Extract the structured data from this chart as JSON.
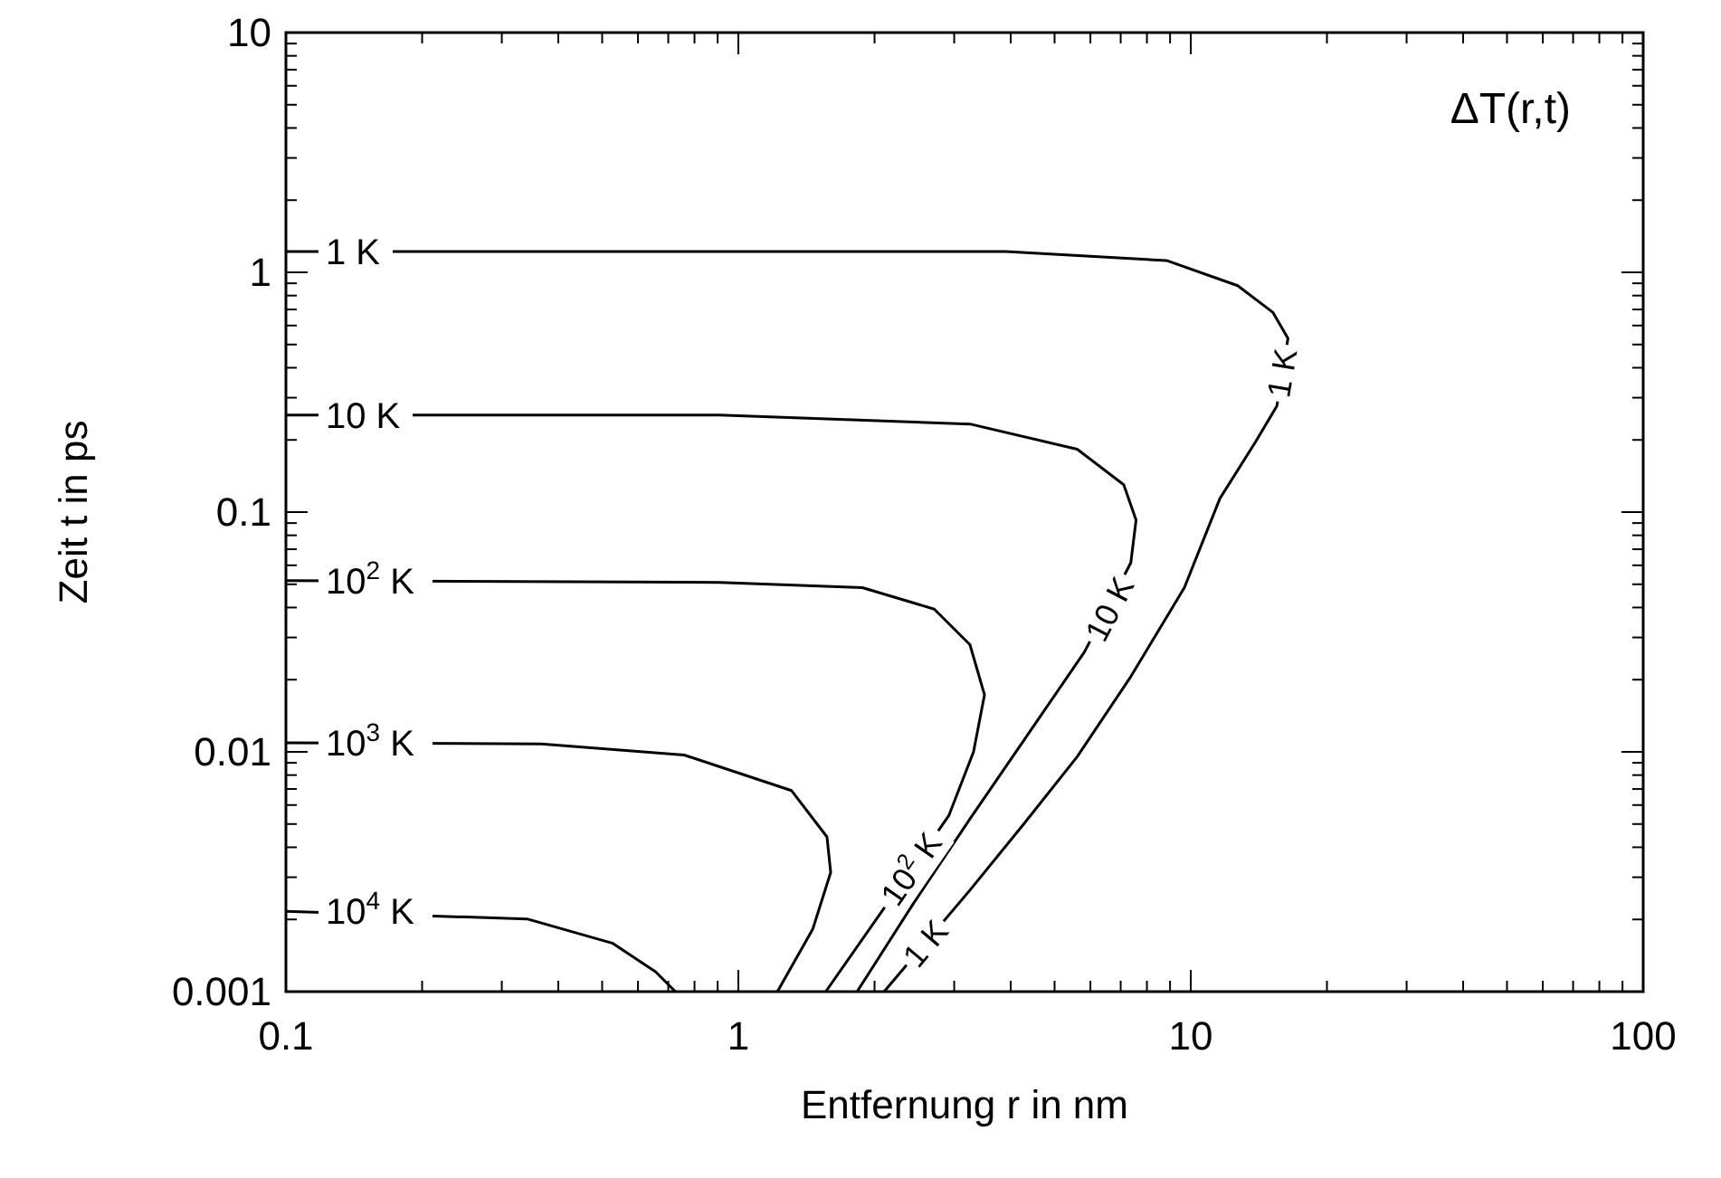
{
  "chart_data": {
    "type": "line",
    "title": "ΔT(r,t)",
    "xlabel": "Entfernung r in nm",
    "ylabel": "Zeit t in ps",
    "log": "xy",
    "xlim": [
      0.1,
      100
    ],
    "ylim": [
      0.001,
      10
    ],
    "xticks": [
      0.1,
      {
        "value": 0.2,
        "label": null
      },
      {
        "value": 0.3,
        "label": null
      },
      {
        "value": 0.4,
        "label": null
      },
      {
        "value": 0.5,
        "label": null
      },
      {
        "value": 0.6,
        "label": null
      },
      {
        "value": 0.7,
        "label": null
      },
      {
        "value": 0.8,
        "label": null
      },
      {
        "value": 0.9,
        "label": null
      },
      1,
      {
        "value": 2,
        "label": null
      },
      {
        "value": 3,
        "label": null
      },
      {
        "value": 4,
        "label": null
      },
      {
        "value": 5,
        "label": null
      },
      {
        "value": 6,
        "label": null
      },
      {
        "value": 7,
        "label": null
      },
      {
        "value": 8,
        "label": null
      },
      {
        "value": 9,
        "label": null
      },
      10,
      {
        "value": 20,
        "label": null
      },
      {
        "value": 30,
        "label": null
      },
      {
        "value": 40,
        "label": null
      },
      {
        "value": 50,
        "label": null
      },
      {
        "value": 60,
        "label": null
      },
      {
        "value": 70,
        "label": null
      },
      {
        "value": 80,
        "label": null
      },
      {
        "value": 90,
        "label": null
      },
      100
    ],
    "yticks": [
      0.001,
      {
        "value": 0.002,
        "label": null
      },
      {
        "value": 0.003,
        "label": null
      },
      {
        "value": 0.004,
        "label": null
      },
      {
        "value": 0.005,
        "label": null
      },
      {
        "value": 0.006,
        "label": null
      },
      {
        "value": 0.007,
        "label": null
      },
      {
        "value": 0.008,
        "label": null
      },
      {
        "value": 0.009,
        "label": null
      },
      0.01,
      {
        "value": 0.02,
        "label": null
      },
      {
        "value": 0.03,
        "label": null
      },
      {
        "value": 0.04,
        "label": null
      },
      {
        "value": 0.05,
        "label": null
      },
      {
        "value": 0.06,
        "label": null
      },
      {
        "value": 0.07,
        "label": null
      },
      {
        "value": 0.08,
        "label": null
      },
      {
        "value": 0.09,
        "label": null
      },
      0.1,
      {
        "value": 0.2,
        "label": null
      },
      {
        "value": 0.3,
        "label": null
      },
      {
        "value": 0.4,
        "label": null
      },
      {
        "value": 0.5,
        "label": null
      },
      {
        "value": 0.6,
        "label": null
      },
      {
        "value": 0.7,
        "label": null
      },
      {
        "value": 0.8,
        "label": null
      },
      {
        "value": 0.9,
        "label": null
      },
      1,
      {
        "value": 2,
        "label": null
      },
      {
        "value": 3,
        "label": null
      },
      {
        "value": 4,
        "label": null
      },
      {
        "value": 5,
        "label": null
      },
      {
        "value": 6,
        "label": null
      },
      {
        "value": 7,
        "label": null
      },
      {
        "value": 8,
        "label": null
      },
      {
        "value": 9,
        "label": null
      },
      10
    ],
    "series": [
      {
        "name": "1 K",
        "color": "#000000",
        "x": [
          0.1,
          0.91,
          3.9,
          8.84,
          12.7,
          15.2,
          16.4,
          15.5,
          13.9,
          11.6,
          9.68,
          7.37,
          5.61,
          4.27,
          3.25,
          2.1
        ],
        "values": [
          1.22,
          1.22,
          1.22,
          1.12,
          0.88,
          0.68,
          0.53,
          0.277,
          0.196,
          0.114,
          0.0484,
          0.0206,
          0.00954,
          0.00499,
          0.00265,
          0.001
        ]
      },
      {
        "name": "10 K",
        "color": "#000000",
        "x": [
          0.1,
          0.91,
          3.25,
          5.61,
          7.11,
          7.57,
          7.37,
          5.82,
          4.35,
          3.25,
          2.43,
          1.83
        ],
        "values": [
          0.254,
          0.254,
          0.233,
          0.183,
          0.13,
          0.0926,
          0.0615,
          0.0261,
          0.0117,
          0.00525,
          0.00231,
          0.001
        ]
      },
      {
        "name": "10$^{2}$ K",
        "color": "#000000",
        "x": [
          0.1,
          0.91,
          1.88,
          2.71,
          3.25,
          3.5,
          3.31,
          2.92,
          1.56
        ],
        "values": [
          0.0518,
          0.0509,
          0.0484,
          0.0394,
          0.028,
          0.0173,
          0.01,
          0.00543,
          0.001
        ]
      },
      {
        "name": "10$^{3}$ K",
        "color": "#000000",
        "x": [
          0.1,
          0.367,
          0.759,
          1.31,
          1.57,
          1.6,
          1.46,
          1.22
        ],
        "values": [
          0.0109,
          0.0108,
          0.0097,
          0.0069,
          0.00442,
          0.00314,
          0.00182,
          0.001
        ]
      },
      {
        "name": "10$^{4}$ K",
        "color": "#000000",
        "x": [
          0.1,
          0.341,
          0.528,
          0.656,
          0.726
        ],
        "values": [
          0.00216,
          0.00201,
          0.00159,
          0.00121,
          0.001
        ]
      }
    ],
    "annotations": [
      {
        "text": "1 K",
        "x": 15.9,
        "y": 0.38
      },
      {
        "text": "10 K",
        "x": 6.61,
        "y": 0.0394
      },
      {
        "text": "10$^{2}$ K",
        "x": 2.41,
        "y": 0.00325
      },
      {
        "text": "1 K",
        "x": 2.59,
        "y": 0.00159
      }
    ]
  }
}
